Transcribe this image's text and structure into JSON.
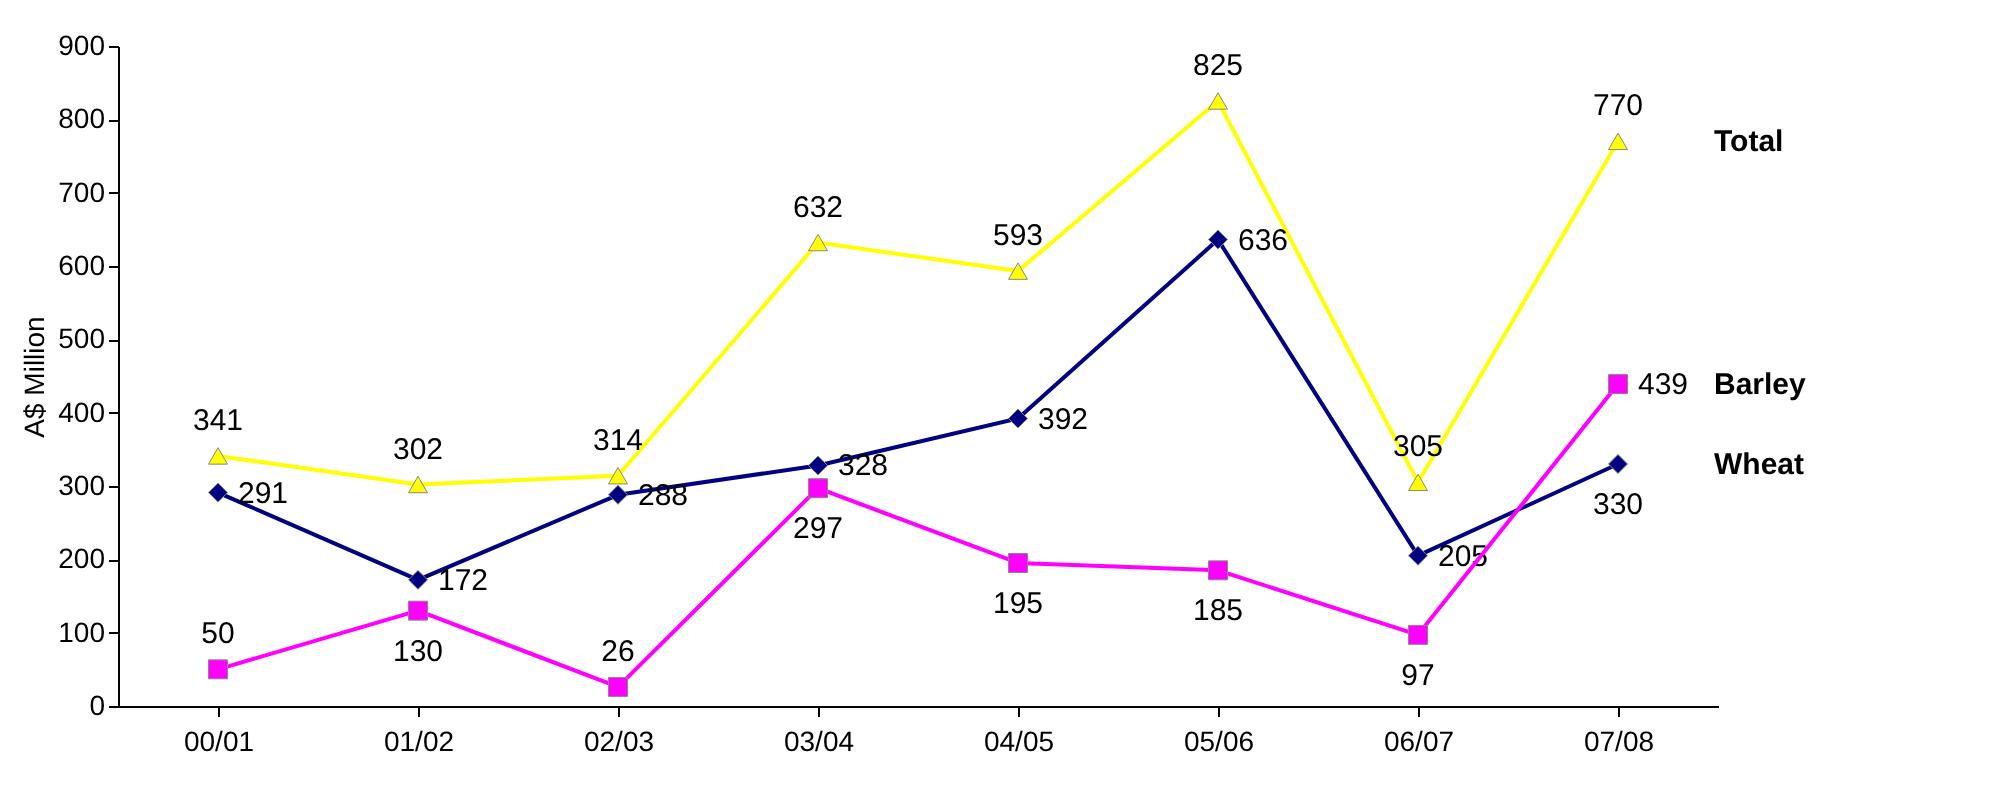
{
  "chart_data": {
    "type": "line",
    "ylabel": "A$ Million",
    "categories": [
      "00/01",
      "01/02",
      "02/03",
      "03/04",
      "04/05",
      "05/06",
      "06/07",
      "07/08"
    ],
    "ylim": [
      0,
      900
    ],
    "yticks": [
      0,
      100,
      200,
      300,
      400,
      500,
      600,
      700,
      800,
      900
    ],
    "grid": false,
    "data_labels": true,
    "series": [
      {
        "name": "Total",
        "color": "#ffff00",
        "marker": "triangle",
        "values": [
          341,
          302,
          314,
          632,
          593,
          825,
          305,
          770
        ]
      },
      {
        "name": "Wheat",
        "color": "#000080",
        "marker": "diamond",
        "values": [
          291,
          172,
          288,
          328,
          392,
          636,
          205,
          330
        ]
      },
      {
        "name": "Barley",
        "color": "#ff00ff",
        "marker": "square",
        "values": [
          50,
          130,
          26,
          297,
          195,
          185,
          97,
          439
        ]
      }
    ]
  }
}
